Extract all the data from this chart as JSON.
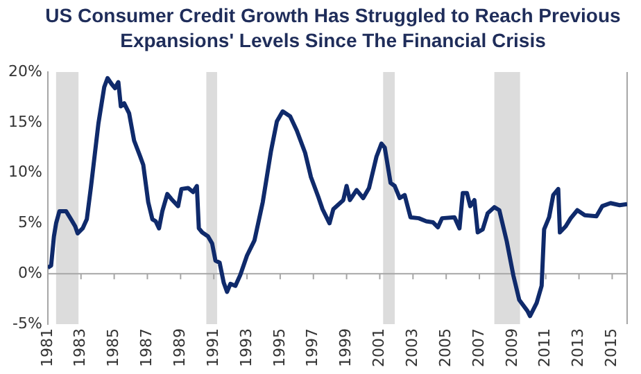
{
  "chart_data": {
    "type": "line",
    "title": "US Consumer Credit Growth Has Struggled to Reach Previous Expansions' Levels Since The Financial Crisis",
    "series": [
      {
        "color": "#0f2a6b",
        "x": [
          1981.0,
          1981.2,
          1981.37,
          1981.5,
          1981.7,
          1982.1,
          1982.4,
          1982.65,
          1982.8,
          1983.1,
          1983.35,
          1983.6,
          1984.05,
          1984.4,
          1984.6,
          1984.85,
          1985.05,
          1985.25,
          1985.4,
          1985.6,
          1985.9,
          1986.2,
          1986.55,
          1986.75,
          1987.05,
          1987.3,
          1987.5,
          1987.7,
          1987.9,
          1988.2,
          1988.45,
          1988.85,
          1989.05,
          1989.45,
          1989.75,
          1989.98,
          1990.1,
          1990.3,
          1990.65,
          1990.9,
          1991.1,
          1991.35,
          1991.6,
          1991.8,
          1992.0,
          1992.3,
          1992.6,
          1993.0,
          1993.45,
          1993.95,
          1994.45,
          1994.8,
          1995.15,
          1995.6,
          1996.0,
          1996.5,
          1996.85,
          1997.3,
          1997.55,
          1997.97,
          1998.2,
          1998.8,
          1999.0,
          1999.2,
          1999.6,
          2000.0,
          2000.35,
          2000.8,
          2001.1,
          2001.3,
          2001.65,
          2001.9,
          2002.2,
          2002.5,
          2002.85,
          2003.35,
          2003.8,
          2004.2,
          2004.5,
          2004.75,
          2005.5,
          2005.8,
          2006.0,
          2006.25,
          2006.45,
          2006.7,
          2006.9,
          2007.2,
          2007.5,
          2007.9,
          2008.2,
          2008.65,
          2009.05,
          2009.4,
          2009.9,
          2010.05,
          2010.45,
          2010.75,
          2010.9,
          2011.2,
          2011.45,
          2011.75,
          2011.85,
          2012.2,
          2012.5,
          2012.9,
          2013.35,
          2014.05,
          2014.4,
          2014.9,
          2015.45,
          2015.9
        ],
        "values": [
          0.6,
          0.8,
          3.7,
          5.0,
          6.2,
          6.2,
          5.4,
          4.7,
          4.0,
          4.5,
          5.4,
          8.6,
          14.9,
          18.5,
          19.4,
          18.8,
          18.4,
          19.0,
          16.6,
          16.9,
          15.9,
          13.2,
          11.7,
          10.8,
          7.1,
          5.4,
          5.2,
          4.5,
          6.2,
          7.9,
          7.4,
          6.7,
          8.4,
          8.5,
          8.1,
          8.7,
          4.5,
          4.1,
          3.7,
          3.0,
          1.3,
          1.1,
          -0.9,
          -1.8,
          -1.0,
          -1.2,
          -0.1,
          1.8,
          3.3,
          7.1,
          12.2,
          15.1,
          16.1,
          15.6,
          14.2,
          12.0,
          9.6,
          7.6,
          6.4,
          5.0,
          6.4,
          7.3,
          8.7,
          7.3,
          8.3,
          7.5,
          8.5,
          11.6,
          12.9,
          12.5,
          9.0,
          8.7,
          7.5,
          7.8,
          5.6,
          5.5,
          5.2,
          5.1,
          4.6,
          5.5,
          5.6,
          4.5,
          8.0,
          8.0,
          6.7,
          7.3,
          4.1,
          4.4,
          6.0,
          6.6,
          6.3,
          3.2,
          -0.2,
          -2.6,
          -3.7,
          -4.2,
          -2.9,
          -1.2,
          4.4,
          5.6,
          7.8,
          8.4,
          4.1,
          4.7,
          5.5,
          6.3,
          5.8,
          5.7,
          6.7,
          7.0,
          6.8,
          6.9
        ]
      }
    ],
    "xlim": [
      1981,
      2015.9
    ],
    "xticks": [
      1981,
      1983,
      1985,
      1987,
      1989,
      1991,
      1993,
      1995,
      1997,
      1999,
      2001,
      2003,
      2005,
      2007,
      2009,
      2011,
      2013,
      2015
    ],
    "ylim": [
      -5,
      20
    ],
    "yticks": [
      {
        "value": -5,
        "label": "-5%"
      },
      {
        "value": 0,
        "label": "0%"
      },
      {
        "value": 5,
        "label": "5%"
      },
      {
        "value": 10,
        "label": "10%"
      },
      {
        "value": 15,
        "label": "15%"
      },
      {
        "value": 20,
        "label": "20%"
      }
    ],
    "bands": [
      {
        "axis": "x",
        "from": 1981.5,
        "to": 1982.85,
        "color": "#dcdcdc"
      },
      {
        "axis": "x",
        "from": 1990.55,
        "to": 1991.2,
        "color": "#dcdcdc"
      },
      {
        "axis": "x",
        "from": 2001.2,
        "to": 2001.9,
        "color": "#dcdcdc"
      },
      {
        "axis": "x",
        "from": 2007.9,
        "to": 2009.45,
        "color": "#dcdcdc"
      }
    ],
    "ref_lines": [
      {
        "axis": "y",
        "value": 0,
        "color": "#a6a6a6"
      }
    ],
    "grid": false,
    "legend": false,
    "marker": "none",
    "line_style": "solid"
  }
}
